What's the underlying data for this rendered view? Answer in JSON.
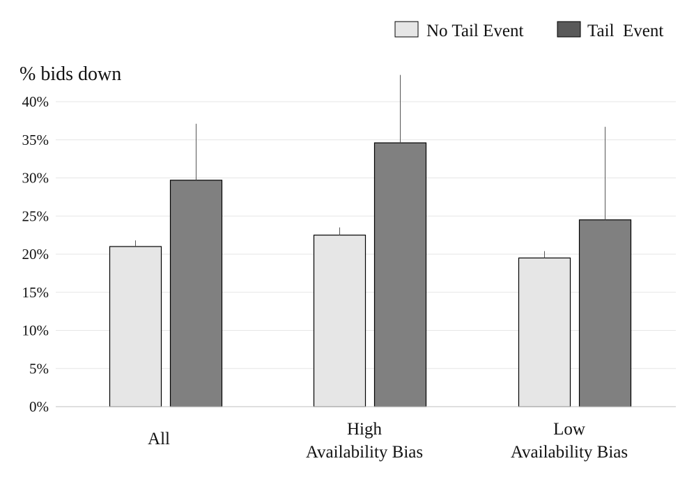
{
  "chart_data": {
    "type": "bar",
    "title": "",
    "ylabel": "% bids down",
    "xlabel": "",
    "ylim": [
      0,
      40
    ],
    "yticks": [
      0,
      5,
      10,
      15,
      20,
      25,
      30,
      35,
      40
    ],
    "ytick_labels": [
      "0%",
      "5%",
      "10%",
      "15%",
      "20%",
      "25%",
      "30%",
      "35%",
      "40%"
    ],
    "grid": true,
    "legend_position": "top-right",
    "categories": [
      [
        "All"
      ],
      [
        "High",
        "Availability  Bias"
      ],
      [
        "Low",
        "Availability  Bias"
      ]
    ],
    "series": [
      {
        "name": "No Tail Event",
        "color": "#e6e6e6",
        "values": [
          21.0,
          22.5,
          19.5
        ],
        "error_upper": [
          21.8,
          23.5,
          20.4
        ]
      },
      {
        "name": "Tail  Event",
        "color": "#808080",
        "values": [
          29.7,
          34.6,
          24.5
        ],
        "error_upper": [
          37.1,
          43.5,
          36.7
        ]
      }
    ]
  }
}
